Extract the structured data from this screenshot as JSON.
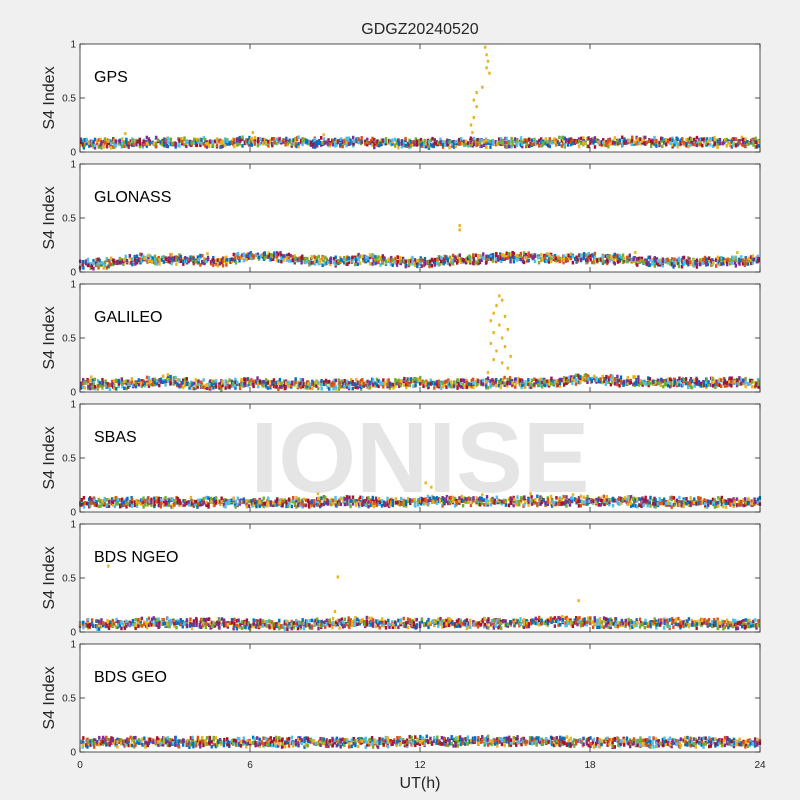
{
  "watermark": "IONISE",
  "colors": [
    "#0072BD",
    "#D95319",
    "#EDB120",
    "#7E2F8E",
    "#77AC30",
    "#4DBEEE",
    "#A2142F"
  ],
  "chart_data": {
    "type": "scatter",
    "title": "GDGZ20240520",
    "xlabel": "UT(h)",
    "ylabel": "S4 Index",
    "xlim": [
      0,
      24
    ],
    "ylim": [
      0,
      1
    ],
    "xticks": [
      0,
      6,
      12,
      18,
      24
    ],
    "yticks": [
      0,
      0.5,
      1
    ],
    "ytick_labels": [
      "0",
      "0.5",
      "1"
    ],
    "grid": false,
    "panels": [
      {
        "label": "GPS",
        "baseline": [
          0.08,
          0.08,
          0.09,
          0.09,
          0.09,
          0.09,
          0.1,
          0.1,
          0.09,
          0.09,
          0.09,
          0.08,
          0.08,
          0.08,
          0.09,
          0.09,
          0.09,
          0.09,
          0.09,
          0.09,
          0.1,
          0.09,
          0.09,
          0.09,
          0.09
        ],
        "outliers": [
          [
            14.3,
            0.97
          ],
          [
            14.35,
            0.9
          ],
          [
            14.4,
            0.84
          ],
          [
            14.35,
            0.78
          ],
          [
            14.45,
            0.73
          ],
          [
            14.2,
            0.6
          ],
          [
            14.0,
            0.55
          ],
          [
            13.9,
            0.48
          ],
          [
            14.0,
            0.42
          ],
          [
            13.9,
            0.32
          ],
          [
            13.8,
            0.25
          ],
          [
            13.85,
            0.18
          ],
          [
            1.6,
            0.17
          ],
          [
            8.6,
            0.16
          ],
          [
            6.1,
            0.18
          ]
        ]
      },
      {
        "label": "GLONASS",
        "baseline": [
          0.07,
          0.08,
          0.12,
          0.12,
          0.11,
          0.1,
          0.15,
          0.14,
          0.11,
          0.1,
          0.12,
          0.1,
          0.09,
          0.11,
          0.12,
          0.14,
          0.13,
          0.12,
          0.13,
          0.12,
          0.1,
          0.09,
          0.09,
          0.1,
          0.11
        ],
        "outliers": [
          [
            13.4,
            0.43
          ],
          [
            13.4,
            0.39
          ],
          [
            23.2,
            0.18
          ],
          [
            19.6,
            0.18
          ],
          [
            16.6,
            0.15
          ],
          [
            16.5,
            0.17
          ],
          [
            4.5,
            0.17
          ]
        ]
      },
      {
        "label": "GALILEO",
        "baseline": [
          0.08,
          0.07,
          0.08,
          0.11,
          0.07,
          0.06,
          0.09,
          0.07,
          0.08,
          0.07,
          0.07,
          0.08,
          0.09,
          0.07,
          0.08,
          0.09,
          0.08,
          0.1,
          0.12,
          0.1,
          0.09,
          0.09,
          0.08,
          0.1,
          0.08
        ],
        "outliers": [
          [
            14.8,
            0.89
          ],
          [
            14.9,
            0.85
          ],
          [
            14.7,
            0.8
          ],
          [
            14.6,
            0.73
          ],
          [
            15.0,
            0.7
          ],
          [
            14.5,
            0.66
          ],
          [
            14.8,
            0.62
          ],
          [
            15.1,
            0.58
          ],
          [
            14.6,
            0.55
          ],
          [
            14.9,
            0.5
          ],
          [
            14.5,
            0.45
          ],
          [
            15.0,
            0.42
          ],
          [
            14.7,
            0.38
          ],
          [
            15.2,
            0.33
          ],
          [
            14.6,
            0.3
          ],
          [
            14.9,
            0.27
          ],
          [
            15.1,
            0.22
          ],
          [
            14.4,
            0.18
          ],
          [
            3.1,
            0.16
          ],
          [
            0.4,
            0.14
          ],
          [
            23.0,
            0.13
          ]
        ]
      },
      {
        "label": "SBAS",
        "baseline": [
          0.09,
          0.09,
          0.09,
          0.09,
          0.09,
          0.09,
          0.09,
          0.09,
          0.09,
          0.1,
          0.09,
          0.09,
          0.1,
          0.1,
          0.1,
          0.09,
          0.1,
          0.1,
          0.1,
          0.1,
          0.09,
          0.09,
          0.09,
          0.09,
          0.09
        ],
        "outliers": [
          [
            12.2,
            0.27
          ],
          [
            12.4,
            0.23
          ],
          [
            8.4,
            0.17
          ],
          [
            15.9,
            0.17
          ],
          [
            17.4,
            0.16
          ],
          [
            14.2,
            0.16
          ]
        ]
      },
      {
        "label": "BDS NGEO",
        "baseline": [
          0.07,
          0.07,
          0.08,
          0.09,
          0.08,
          0.08,
          0.07,
          0.07,
          0.07,
          0.08,
          0.09,
          0.08,
          0.08,
          0.08,
          0.08,
          0.08,
          0.09,
          0.1,
          0.09,
          0.08,
          0.08,
          0.08,
          0.08,
          0.07,
          0.08
        ],
        "outliers": [
          [
            1.0,
            0.61
          ],
          [
            9.1,
            0.51
          ],
          [
            9.0,
            0.19
          ],
          [
            17.6,
            0.29
          ],
          [
            10.2,
            0.13
          ]
        ]
      },
      {
        "label": "BDS GEO",
        "baseline": [
          0.09,
          0.09,
          0.09,
          0.09,
          0.09,
          0.09,
          0.09,
          0.09,
          0.09,
          0.09,
          0.09,
          0.09,
          0.1,
          0.1,
          0.1,
          0.1,
          0.1,
          0.1,
          0.09,
          0.09,
          0.09,
          0.09,
          0.09,
          0.09,
          0.09
        ],
        "outliers": []
      }
    ]
  }
}
